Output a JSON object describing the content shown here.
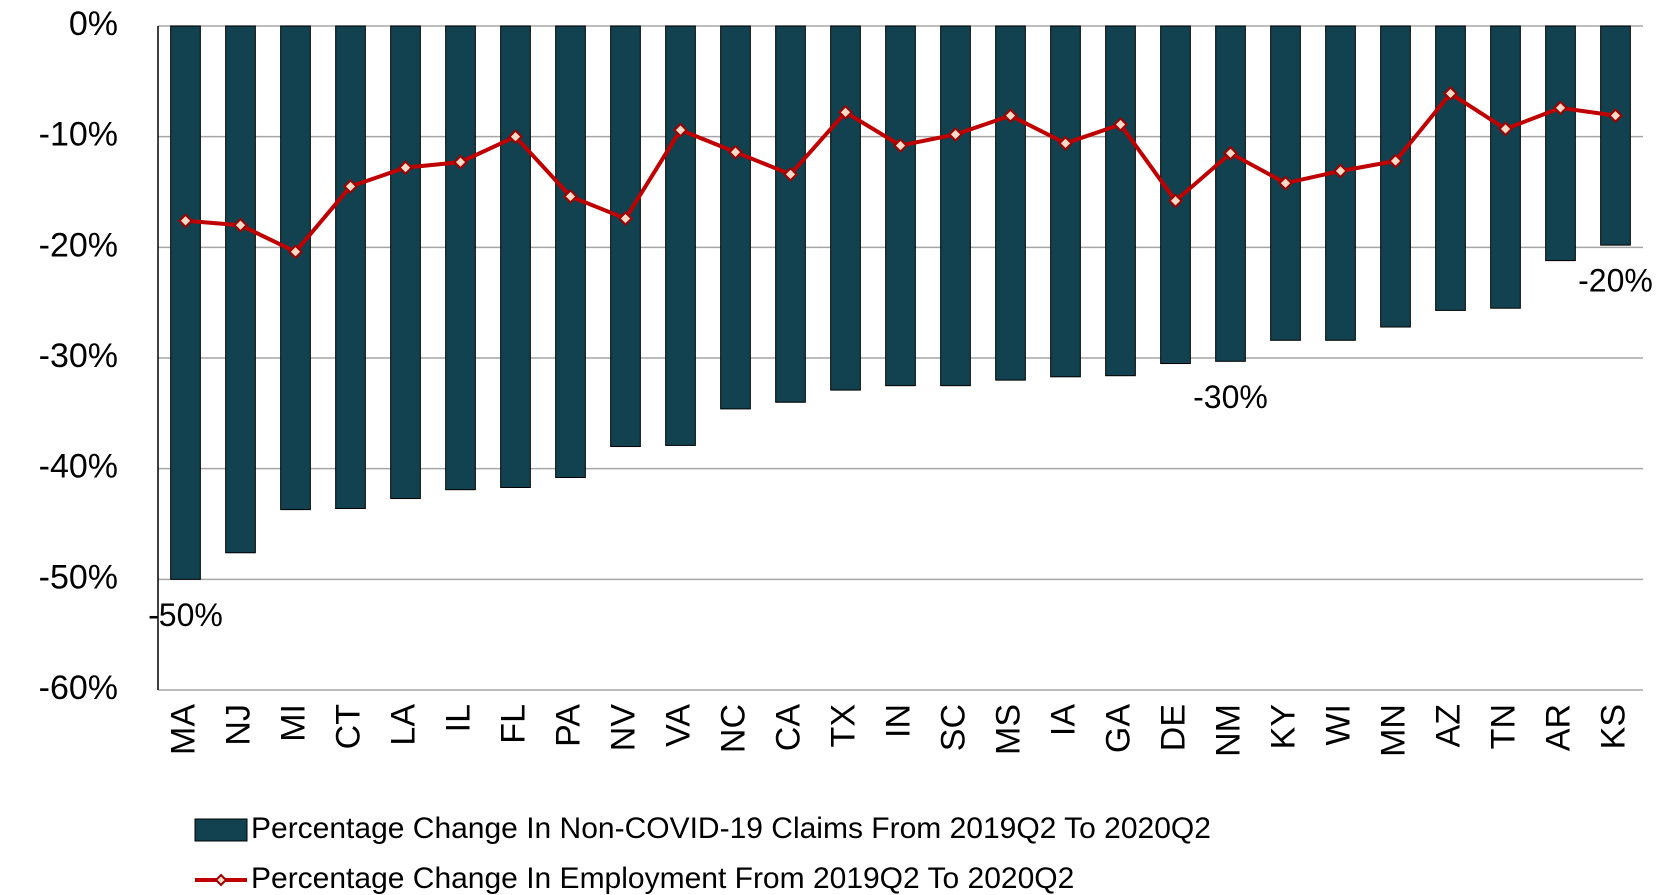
{
  "chart_data": {
    "type": "bar_line",
    "categories": [
      "MA",
      "NJ",
      "MI",
      "CT",
      "LA",
      "IL",
      "FL",
      "PA",
      "NV",
      "VA",
      "NC",
      "CA",
      "TX",
      "IN",
      "SC",
      "MS",
      "IA",
      "GA",
      "DE",
      "NM",
      "KY",
      "WI",
      "MN",
      "AZ",
      "TN",
      "AR",
      "KS"
    ],
    "series": [
      {
        "name": "Percentage Change In Non-COVID-19 Claims From 2019Q2 To 2020Q2",
        "type": "bar",
        "color": "#12424f",
        "values": [
          -50.0,
          -47.6,
          -43.7,
          -43.6,
          -42.7,
          -41.9,
          -41.7,
          -40.8,
          -38.0,
          -37.9,
          -34.6,
          -34.0,
          -32.9,
          -32.5,
          -32.5,
          -32.0,
          -31.7,
          -31.6,
          -30.5,
          -30.3,
          -28.4,
          -28.4,
          -27.2,
          -25.7,
          -25.5,
          -21.2,
          -19.8
        ],
        "value_labels": [
          "-50%",
          null,
          null,
          null,
          null,
          null,
          null,
          null,
          null,
          null,
          null,
          null,
          null,
          null,
          null,
          null,
          null,
          null,
          null,
          "-30%",
          null,
          null,
          null,
          null,
          null,
          null,
          "-20%"
        ]
      },
      {
        "name": "Percentage Change In Employment From 2019Q2 To 2020Q2",
        "type": "line",
        "color": "#c00000",
        "values": [
          -17.6,
          -18.0,
          -20.4,
          -14.5,
          -12.8,
          -12.3,
          -10.0,
          -15.4,
          -17.4,
          -9.4,
          -11.4,
          -13.4,
          -7.8,
          -10.8,
          -9.8,
          -8.1,
          -10.6,
          -8.9,
          -15.8,
          -11.5,
          -14.2,
          -13.1,
          -12.2,
          -6.1,
          -9.3,
          -7.4,
          -8.1
        ]
      }
    ],
    "ylim": [
      -60,
      0
    ],
    "yticks": [
      {
        "value": 0,
        "label": "0%"
      },
      {
        "value": -10,
        "label": "-10%"
      },
      {
        "value": -20,
        "label": "-20%"
      },
      {
        "value": -30,
        "label": "-30%"
      },
      {
        "value": -40,
        "label": "-40%"
      },
      {
        "value": -50,
        "label": "-50%"
      },
      {
        "value": -60,
        "label": "-60%"
      }
    ],
    "grid": true,
    "legend": "bottom"
  }
}
